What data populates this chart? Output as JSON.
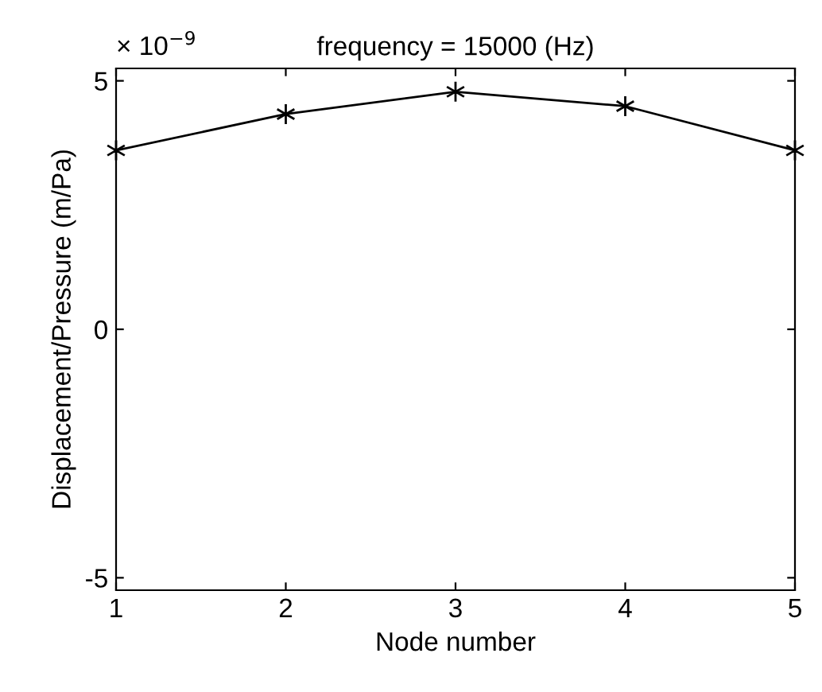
{
  "chart_data": {
    "type": "line",
    "title": "frequency = 15000 (Hz)",
    "xlabel": "Node number",
    "ylabel": "Displacement/Pressure (m/Pa)",
    "annotations": [
      "× 10$^{−9}$"
    ],
    "x": [
      1,
      2,
      3,
      4,
      5
    ],
    "series": [
      {
        "color": "#000000",
        "values": [
          3.6,
          4.33,
          4.78,
          4.49,
          3.6
        ]
      }
    ],
    "xlim": [
      1,
      5
    ],
    "xticks": [
      1,
      2,
      3,
      4,
      5
    ],
    "ylim": [
      -5.25,
      5.25
    ],
    "yticks": [
      -5,
      0,
      5
    ],
    "grid": false,
    "legend": false,
    "marker": "cross",
    "line_style": "solid"
  }
}
